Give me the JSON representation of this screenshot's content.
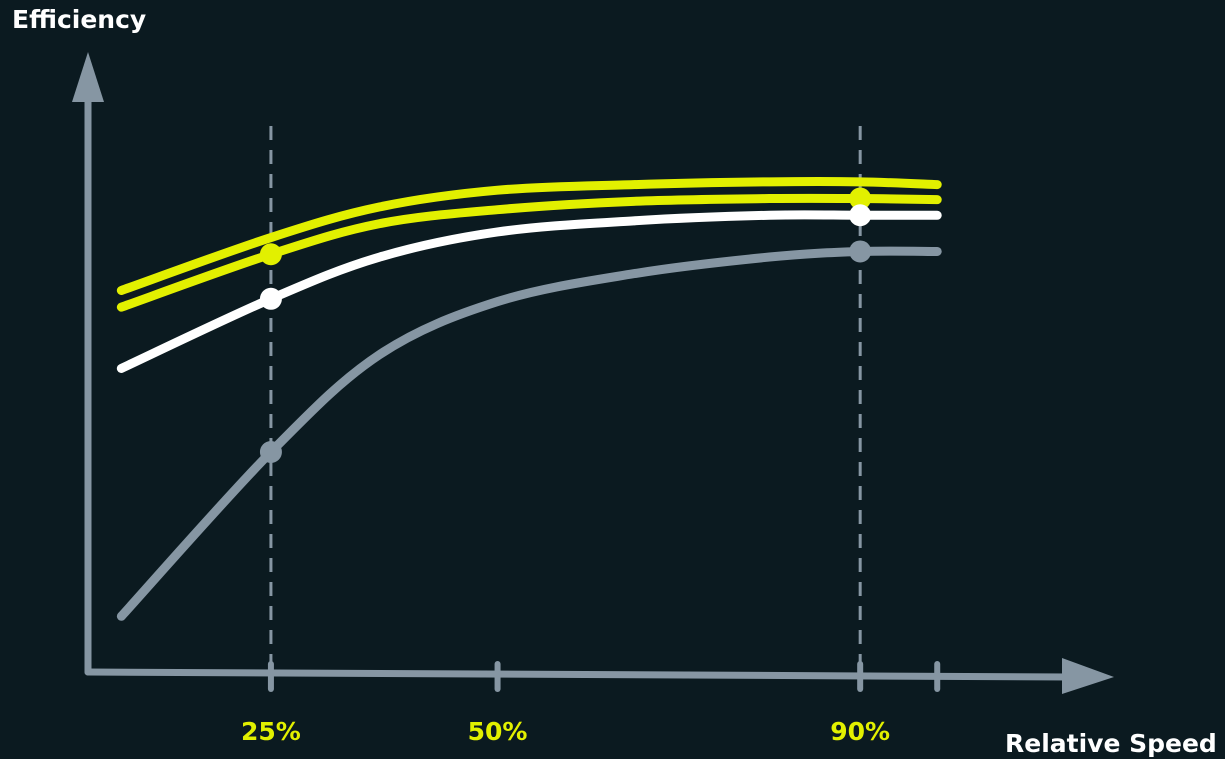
{
  "chart_data": {
    "type": "line",
    "ylabel": "Efficiency",
    "xlabel": "Relative Speed",
    "x_tick_labels": [
      {
        "x": 25,
        "label": "25%"
      },
      {
        "x": 50,
        "label": "50%"
      },
      {
        "x": 90,
        "label": "90%"
      }
    ],
    "x_ticks": [
      25,
      50,
      90,
      98.5
    ],
    "xlim": [
      4.6,
      118
    ],
    "ylim": [
      0,
      100
    ],
    "grid": false,
    "highlight_x": [
      25,
      90
    ],
    "series": [
      {
        "color": "#e2f000",
        "x": [
          8.5,
          25,
          37,
          50,
          65,
          80,
          90,
          98.5
        ],
        "y": [
          68.5,
          78,
          83.5,
          86.5,
          87.5,
          88,
          88,
          87.5
        ],
        "markers": []
      },
      {
        "color": "#e2f000",
        "x": [
          8.5,
          25,
          37,
          50,
          65,
          80,
          90,
          98.5
        ],
        "y": [
          65.5,
          75,
          80.5,
          83,
          84.5,
          85,
          85,
          84.8
        ],
        "markers": [
          25,
          90
        ]
      },
      {
        "color": "#ffffff",
        "x": [
          8.5,
          25,
          37,
          50,
          65,
          80,
          90,
          98.5
        ],
        "y": [
          54.5,
          67,
          74.5,
          79,
          81,
          82,
          82,
          82
        ],
        "markers": [
          25,
          90
        ]
      },
      {
        "color": "#8696a3",
        "x": [
          8.5,
          25,
          37,
          50,
          65,
          80,
          90,
          98.5
        ],
        "y": [
          10,
          39.5,
          57,
          66.5,
          71.5,
          74.5,
          75.5,
          75.5
        ],
        "markers": [
          25,
          90
        ]
      }
    ],
    "colors": {
      "axis": "#8696a3",
      "tick_label": "#e2f000",
      "axis_label": "#ffffff",
      "background": "#0b1a20",
      "guide": "#8696a3"
    }
  }
}
